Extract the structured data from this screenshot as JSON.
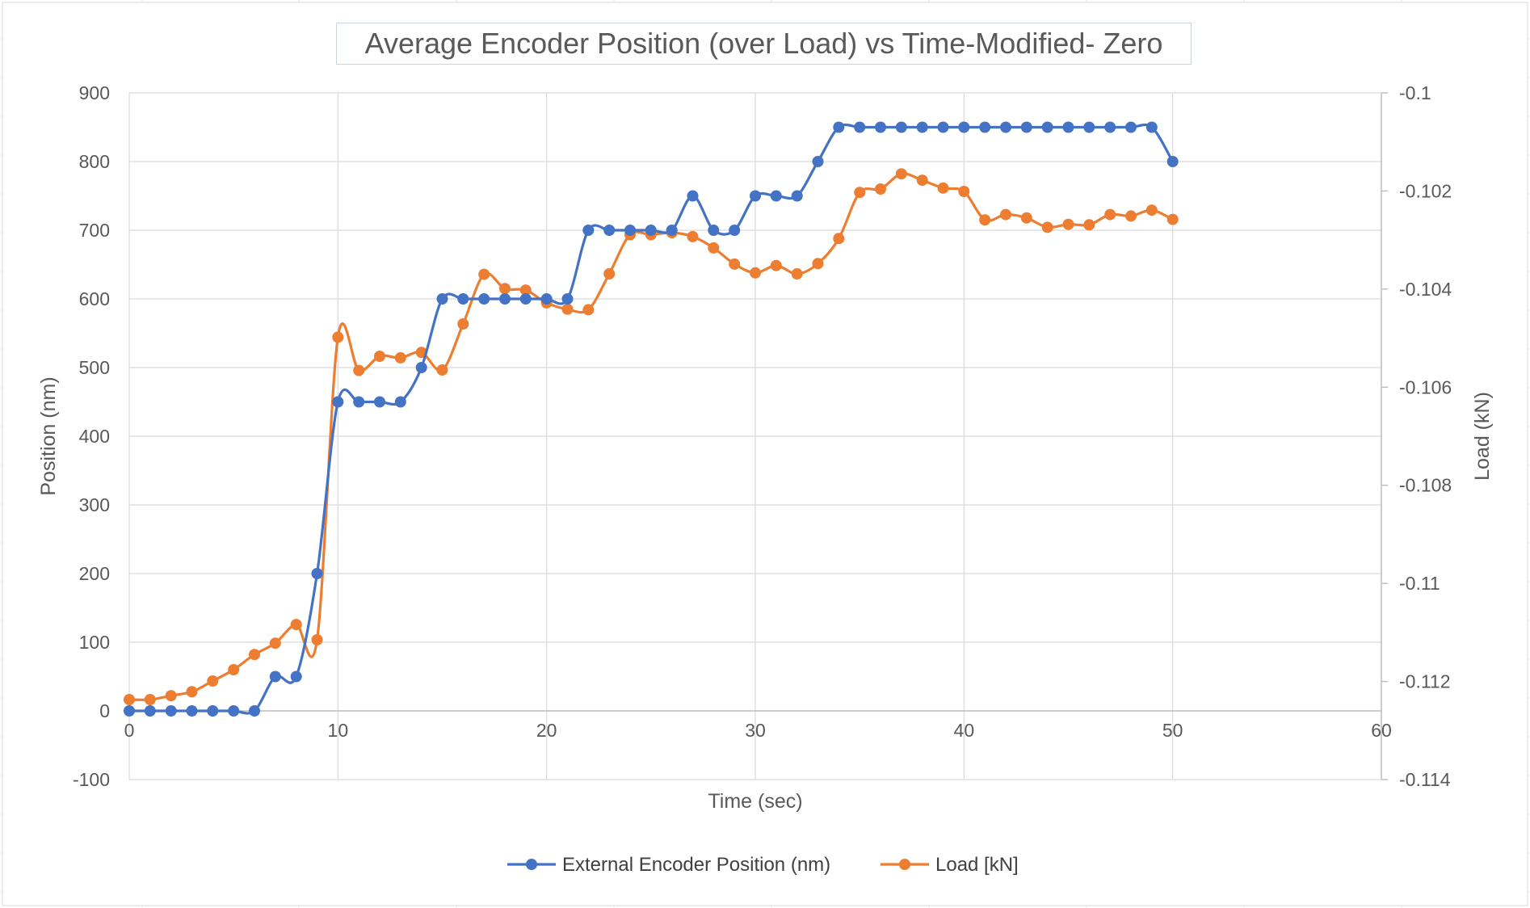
{
  "chart_data": {
    "type": "scatter",
    "title": "Average Encoder Position (over Load) vs Time-Modified- Zero",
    "xlabel": "Time (sec)",
    "ylabel": "Position (nm)",
    "y2label": "Load (kN)",
    "xlim": [
      0,
      60
    ],
    "ylim": [
      -100,
      900
    ],
    "y2lim": [
      -0.114,
      -0.1
    ],
    "x_ticks": [
      "0",
      "10",
      "20",
      "30",
      "40",
      "50",
      "60"
    ],
    "y_ticks": [
      "-100",
      "0",
      "100",
      "200",
      "300",
      "400",
      "500",
      "600",
      "700",
      "800",
      "900"
    ],
    "y2_ticks": [
      "-0.114",
      "-0.112",
      "-0.11",
      "-0.108",
      "-0.106",
      "-0.104",
      "-0.102",
      "-0.1"
    ],
    "grid": true,
    "legend_position": "bottom",
    "x": [
      0,
      1,
      2,
      3,
      4,
      5,
      6,
      7,
      8,
      9,
      10,
      11,
      12,
      13,
      14,
      15,
      16,
      17,
      18,
      19,
      20,
      21,
      22,
      23,
      24,
      25,
      26,
      27,
      28,
      29,
      30,
      31,
      32,
      33,
      34,
      35,
      36,
      37,
      38,
      39,
      40,
      41,
      42,
      43,
      44,
      45,
      46,
      47,
      48,
      49,
      50
    ],
    "series": [
      {
        "name": "External Encoder Position (nm)",
        "axis": "left",
        "color": "#4472c4",
        "values": [
          0,
          0,
          0,
          0,
          0,
          0,
          0,
          50,
          50,
          200,
          450,
          450,
          450,
          450,
          500,
          600,
          600,
          600,
          600,
          600,
          600,
          600,
          700,
          700,
          700,
          700,
          700,
          750,
          700,
          700,
          750,
          750,
          750,
          800,
          850,
          850,
          850,
          850,
          850,
          850,
          850,
          850,
          850,
          850,
          850,
          850,
          850,
          850,
          850,
          850,
          800
        ]
      },
      {
        "name": "Load [kN]",
        "axis": "right",
        "color": "#ed7d31",
        "values": [
          -0.11237,
          -0.11237,
          -0.11229,
          -0.11221,
          -0.11199,
          -0.11176,
          -0.11145,
          -0.11122,
          -0.11084,
          -0.11115,
          -0.10498,
          -0.10566,
          -0.10537,
          -0.1054,
          -0.10529,
          -0.10565,
          -0.10471,
          -0.1037,
          -0.10399,
          -0.10402,
          -0.10428,
          -0.10441,
          -0.10442,
          -0.10369,
          -0.10289,
          -0.10289,
          -0.10285,
          -0.10293,
          -0.10316,
          -0.10349,
          -0.10367,
          -0.10352,
          -0.10369,
          -0.10348,
          -0.10297,
          -0.10203,
          -0.10196,
          -0.10165,
          -0.10178,
          -0.10194,
          -0.10201,
          -0.10259,
          -0.10248,
          -0.10255,
          -0.10274,
          -0.10268,
          -0.10269,
          -0.10248,
          -0.10251,
          -0.10239,
          -0.10258
        ]
      }
    ]
  }
}
